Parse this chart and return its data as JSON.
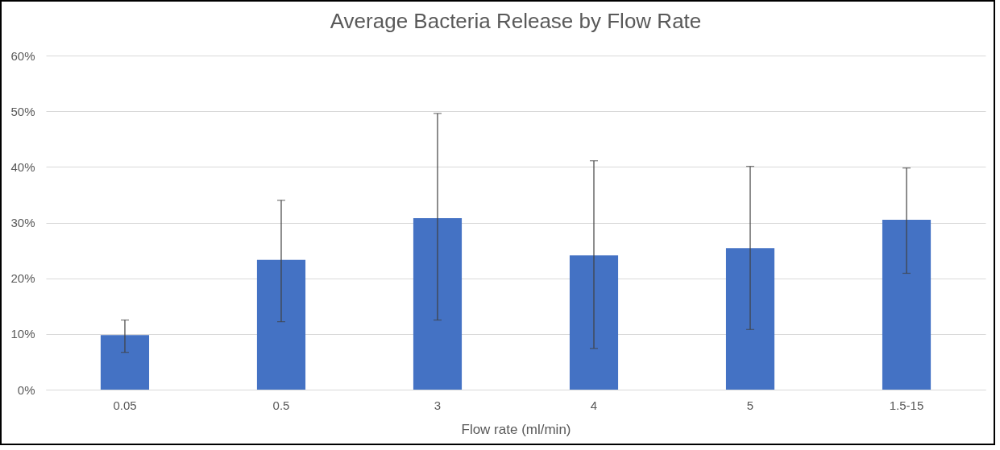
{
  "chart_data": {
    "type": "bar",
    "title": "Average Bacteria Release by Flow Rate",
    "xlabel": "Flow rate (ml/min)",
    "categories": [
      "0.05",
      "0.5",
      "3",
      "4",
      "5",
      "1.5-15"
    ],
    "values": [
      9.8,
      23.3,
      30.8,
      24.1,
      25.4,
      30.5
    ],
    "errors": [
      [
        6.7,
        12.5
      ],
      [
        12.2,
        34.0
      ],
      [
        12.5,
        49.6
      ],
      [
        7.4,
        41.1
      ],
      [
        10.8,
        40.1
      ],
      [
        20.9,
        39.8
      ]
    ],
    "color": "#4472c4",
    "ylim": [
      0,
      60
    ],
    "yticks": [
      {
        "value": 0,
        "label": "0%"
      },
      {
        "value": 10,
        "label": "10%"
      },
      {
        "value": 20,
        "label": "20%"
      },
      {
        "value": 30,
        "label": "30%"
      },
      {
        "value": 40,
        "label": "40%"
      },
      {
        "value": 50,
        "label": "50%"
      },
      {
        "value": 60,
        "label": "60%"
      }
    ],
    "grid": "y"
  }
}
